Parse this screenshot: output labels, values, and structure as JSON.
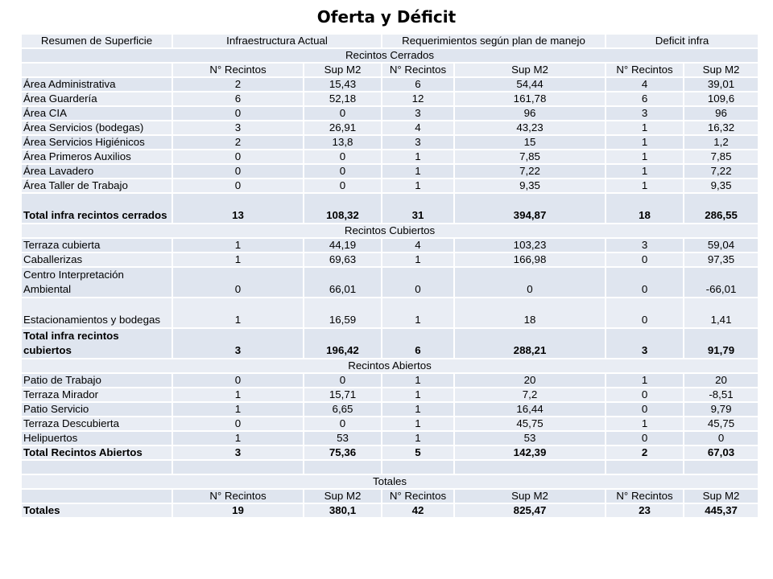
{
  "title": "Oferta y Déficit",
  "header": {
    "c1": "Resumen de Superficie",
    "c2": "Infraestructura Actual",
    "c3": "Requerimientos según plan de manejo",
    "c4": "Deficit infra"
  },
  "sub": {
    "n": "N° Recintos",
    "s": "Sup M2"
  },
  "sections": {
    "cerrados": "Recintos Cerrados",
    "cubiertos": "Recintos Cubiertos",
    "abiertos": "Recintos Abiertos",
    "totales": "Totales"
  },
  "rows": {
    "cerrados": [
      [
        "Área Administrativa",
        "2",
        "15,43",
        "6",
        "54,44",
        "4",
        "39,01"
      ],
      [
        "Área Guardería",
        "6",
        "52,18",
        "12",
        "161,78",
        "6",
        "109,6"
      ],
      [
        "Área CIA",
        "0",
        "0",
        "3",
        "96",
        "3",
        "96"
      ],
      [
        "Área Servicios (bodegas)",
        "3",
        "26,91",
        "4",
        "43,23",
        "1",
        "16,32"
      ],
      [
        "Área Servicios Higiénicos",
        "2",
        "13,8",
        "3",
        "15",
        "1",
        "1,2"
      ],
      [
        "Área Primeros Auxilios",
        "0",
        "0",
        "1",
        "7,85",
        "1",
        "7,85"
      ],
      [
        "Área Lavadero",
        "0",
        "0",
        "1",
        "7,22",
        "1",
        "7,22"
      ],
      [
        "Área Taller de Trabajo",
        "0",
        "0",
        "1",
        "9,35",
        "1",
        "9,35"
      ]
    ],
    "cerrados_total": [
      "Total infra recintos cerrados",
      "13",
      "108,32",
      "31",
      "394,87",
      "18",
      "286,55"
    ],
    "cubiertos": [
      [
        "Terraza cubierta",
        "1",
        "44,19",
        "4",
        "103,23",
        "3",
        "59,04"
      ],
      [
        "Caballerizas",
        "1",
        "69,63",
        "1",
        "166,98",
        "0",
        "97,35"
      ],
      [
        "Centro Interpretación Ambiental",
        "0",
        "66,01",
        "0",
        "0",
        "0",
        "-66,01"
      ],
      [
        "Estacionamientos y bodegas",
        "1",
        "16,59",
        "1",
        "18",
        "0",
        "1,41"
      ]
    ],
    "cubiertos_total": [
      "Total infra recintos cubiertos",
      "3",
      "196,42",
      "6",
      "288,21",
      "3",
      "91,79"
    ],
    "abiertos": [
      [
        "Patio de Trabajo",
        "0",
        "0",
        "1",
        "20",
        "1",
        "20"
      ],
      [
        "Terraza Mirador",
        "1",
        "15,71",
        "1",
        "7,2",
        "0",
        "-8,51"
      ],
      [
        "Patio Servicio",
        "1",
        "6,65",
        "1",
        "16,44",
        "0",
        "9,79"
      ],
      [
        "Terraza Descubierta",
        "0",
        "0",
        "1",
        "45,75",
        "1",
        "45,75"
      ],
      [
        "Helipuertos",
        "1",
        "53",
        "1",
        "53",
        "0",
        "0"
      ]
    ],
    "abiertos_total": [
      "Total Recintos Abiertos",
      "3",
      "75,36",
      "5",
      "142,39",
      "2",
      "67,03"
    ],
    "totales": [
      "Totales",
      "19",
      "380,1",
      "42",
      "825,47",
      "23",
      "445,37"
    ]
  }
}
